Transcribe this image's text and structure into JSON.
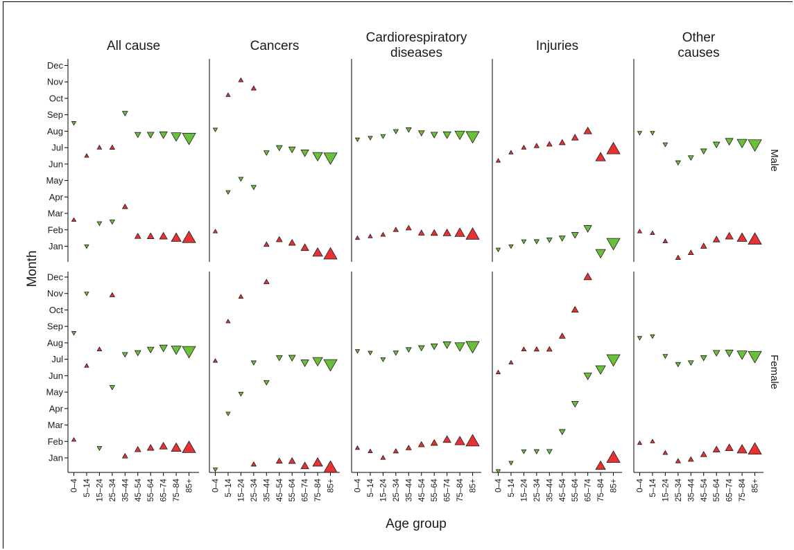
{
  "chart_data": {
    "type": "scatter",
    "ylabel": "Month",
    "xlabel": "Age group",
    "age_groups": [
      "0–4",
      "5–14",
      "15–24",
      "25–34",
      "35–44",
      "45–54",
      "55–64",
      "65–74",
      "75–84",
      "85+"
    ],
    "months": [
      "Jan",
      "Feb",
      "Mar",
      "Apr",
      "May",
      "Jun",
      "Jul",
      "Aug",
      "Sep",
      "Oct",
      "Nov",
      "Dec"
    ],
    "causes": [
      {
        "title": [
          "All cause"
        ]
      },
      {
        "title": [
          "Cancers"
        ]
      },
      {
        "title": [
          "Cardiorespiratory",
          "diseases"
        ]
      },
      {
        "title": [
          "Injuries"
        ]
      },
      {
        "title": [
          "Other",
          "causes"
        ]
      }
    ],
    "sexes": [
      "Male",
      "Female"
    ],
    "marker_legend": {
      "peak": "green downward triangle",
      "trough": "red upward triangle",
      "size": "increases with age group"
    },
    "colors": {
      "peak": "#6cbf3a",
      "trough": "#e63232",
      "stroke": "#1a1a1a"
    },
    "panels": {
      "Male": [
        {
          "peak": [
            8.5,
            1.0,
            2.4,
            2.5,
            9.1,
            7.8,
            7.8,
            7.8,
            7.7,
            7.6
          ],
          "trough": [
            2.6,
            6.5,
            7.0,
            7.0,
            3.4,
            1.6,
            1.6,
            1.6,
            1.5,
            1.5
          ]
        },
        {
          "peak": [
            8.1,
            4.3,
            5.1,
            4.6,
            6.7,
            7.0,
            6.9,
            6.7,
            6.5,
            6.4
          ],
          "trough": [
            1.9,
            10.2,
            11.1,
            10.6,
            1.1,
            1.4,
            1.2,
            0.9,
            0.6,
            0.5
          ]
        },
        {
          "peak": [
            7.5,
            7.6,
            7.7,
            8.0,
            8.1,
            7.9,
            7.8,
            7.8,
            7.8,
            7.7
          ],
          "trough": [
            1.5,
            1.6,
            1.7,
            2.0,
            2.1,
            1.8,
            1.8,
            1.8,
            1.8,
            1.7
          ]
        },
        {
          "peak": [
            0.8,
            1.0,
            1.3,
            1.3,
            1.4,
            1.5,
            1.7,
            2.1,
            0.6,
            1.2
          ],
          "trough": [
            6.2,
            6.7,
            7.0,
            7.1,
            7.2,
            7.3,
            7.6,
            8.0,
            6.4,
            6.9
          ]
        },
        {
          "peak": [
            7.9,
            7.9,
            7.2,
            6.1,
            6.4,
            6.8,
            7.2,
            7.4,
            7.3,
            7.2
          ],
          "trough": [
            1.9,
            1.8,
            1.3,
            0.3,
            0.6,
            1.0,
            1.4,
            1.6,
            1.5,
            1.4
          ]
        }
      ],
      "Female": [
        {
          "peak": [
            8.6,
            11.0,
            1.6,
            5.3,
            7.3,
            7.4,
            7.6,
            7.7,
            7.6,
            7.5
          ],
          "trough": [
            2.1,
            6.6,
            7.6,
            10.9,
            1.1,
            1.5,
            1.6,
            1.7,
            1.6,
            1.6
          ]
        },
        {
          "peak": [
            0.3,
            3.7,
            4.9,
            6.8,
            5.6,
            7.1,
            7.1,
            6.8,
            6.9,
            6.7
          ],
          "trough": [
            6.9,
            9.3,
            10.8,
            0.6,
            11.7,
            0.8,
            0.8,
            0.5,
            0.7,
            0.4
          ]
        },
        {
          "peak": [
            7.5,
            7.4,
            7.0,
            7.4,
            7.6,
            7.7,
            7.8,
            7.9,
            7.8,
            7.8
          ],
          "trough": [
            1.6,
            1.4,
            1.0,
            1.4,
            1.6,
            1.8,
            1.9,
            2.1,
            2.0,
            2.0
          ]
        },
        {
          "peak": [
            0.2,
            0.7,
            1.4,
            1.4,
            1.4,
            2.6,
            4.3,
            6.0,
            6.4,
            7.0
          ],
          "trough": [
            6.2,
            6.8,
            7.6,
            7.6,
            7.6,
            8.4,
            10.0,
            12.0,
            0.5,
            1.0
          ]
        },
        {
          "peak": [
            8.3,
            8.4,
            7.2,
            6.7,
            6.8,
            7.1,
            7.4,
            7.4,
            7.3,
            7.2
          ],
          "trough": [
            1.9,
            2.0,
            1.3,
            0.8,
            0.9,
            1.2,
            1.5,
            1.6,
            1.5,
            1.5
          ]
        }
      ]
    }
  }
}
